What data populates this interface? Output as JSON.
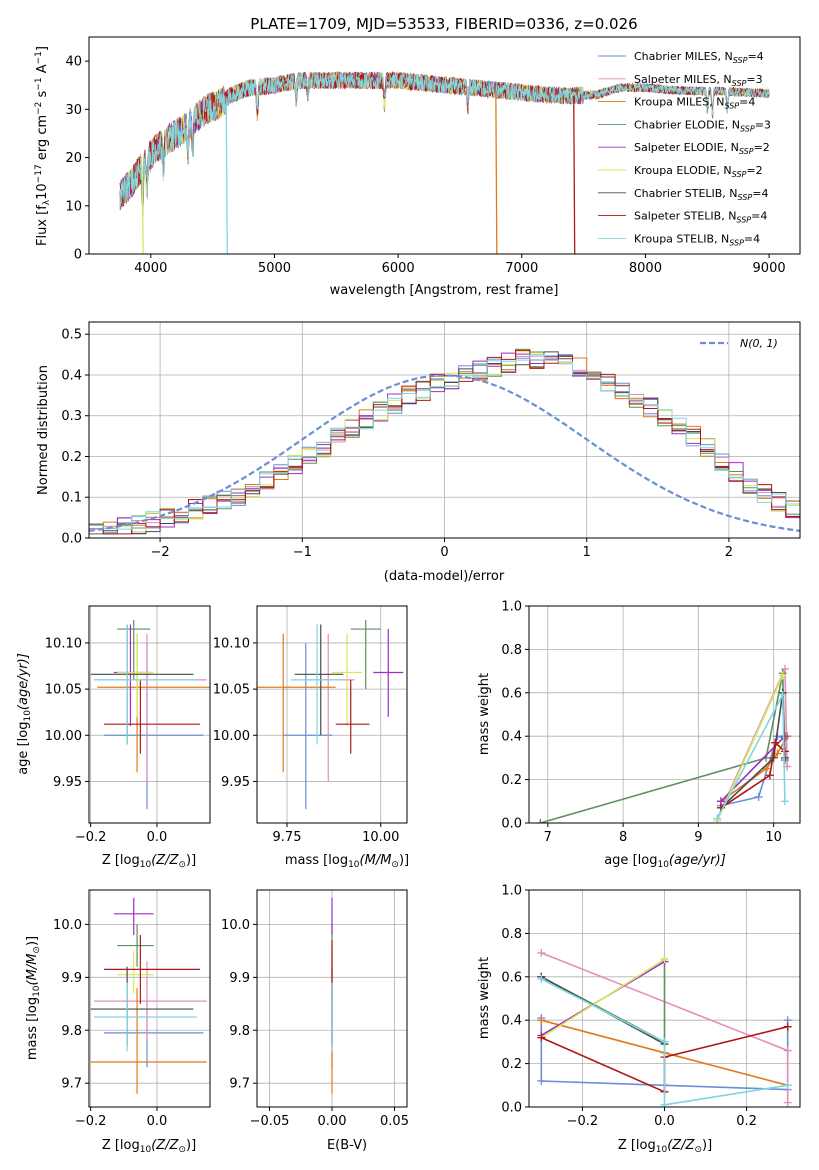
{
  "colors": [
    "#6a8fd6",
    "#e68cba",
    "#e07b1a",
    "#5e8f5e",
    "#9b2ec6",
    "#d9e85a",
    "#4a4a4a",
    "#b01818",
    "#7fd6e0"
  ],
  "chart_data": [
    {
      "type": "line",
      "title": "PLATE=1709, MJD=53533, FIBERID=0336, z=0.026",
      "xlabel": "wavelength [Angstrom, rest frame]",
      "ylabel": "Flux [f",
      "ylabel_sub": "λ",
      "ylabel_mid": "10",
      "ylabel_exp1": "−17",
      "ylabel_mid2": " erg cm",
      "ylabel_exp2": "−2",
      "ylabel_mid3": " s",
      "ylabel_exp3": "−1",
      "ylabel_mid4": " A",
      "ylabel_exp4": "−1",
      "ylabel_end": "]",
      "xlim": [
        3500,
        9250
      ],
      "ylim": [
        0,
        45
      ],
      "xticks": [
        "4000",
        "5000",
        "6000",
        "7000",
        "8000",
        "9000"
      ],
      "xtick_vals": [
        4000,
        5000,
        6000,
        7000,
        8000,
        9000
      ],
      "yticks": [
        "0",
        "10",
        "20",
        "30",
        "40"
      ],
      "ytick_vals": [
        0,
        10,
        20,
        30,
        40
      ],
      "legend": [
        {
          "name": "Chabrier MILES, N",
          "sub": "SSP",
          "n": "=4"
        },
        {
          "name": "Salpeter MILES, N",
          "sub": "SSP",
          "n": "=3"
        },
        {
          "name": "Kroupa MILES, N",
          "sub": "SSP",
          "n": "=4"
        },
        {
          "name": "Chabrier ELODIE, N",
          "sub": "SSP",
          "n": "=3"
        },
        {
          "name": "Salpeter ELODIE, N",
          "sub": "SSP",
          "n": "=2"
        },
        {
          "name": "Kroupa ELODIE, N",
          "sub": "SSP",
          "n": "=2"
        },
        {
          "name": "Chabrier STELIB, N",
          "sub": "SSP",
          "n": "=4"
        },
        {
          "name": "Salpeter STELIB, N",
          "sub": "SSP",
          "n": "=4"
        },
        {
          "name": "Kroupa STELIB, N",
          "sub": "SSP",
          "n": "=4"
        }
      ],
      "continuum": [
        [
          3750,
          12
        ],
        [
          3850,
          15
        ],
        [
          3950,
          19
        ],
        [
          4050,
          22
        ],
        [
          4150,
          24
        ],
        [
          4250,
          25.5
        ],
        [
          4350,
          28
        ],
        [
          4450,
          30
        ],
        [
          4550,
          31
        ],
        [
          4650,
          33
        ],
        [
          4800,
          34.5
        ],
        [
          5000,
          35
        ],
        [
          5200,
          36
        ],
        [
          5400,
          36
        ],
        [
          5600,
          36
        ],
        [
          5800,
          36
        ],
        [
          6000,
          36
        ],
        [
          6200,
          35.5
        ],
        [
          6400,
          35
        ],
        [
          6600,
          34.5
        ],
        [
          6800,
          34
        ],
        [
          7000,
          33.5
        ],
        [
          7200,
          33
        ],
        [
          7400,
          32.8
        ],
        [
          7600,
          33
        ],
        [
          7800,
          34.5
        ],
        [
          8000,
          34.5
        ],
        [
          8200,
          34
        ],
        [
          8400,
          33.8
        ],
        [
          8600,
          33.8
        ],
        [
          8800,
          33.5
        ],
        [
          9000,
          33.3
        ]
      ],
      "dropouts": [
        [
          3930,
          0
        ],
        [
          4610,
          0
        ],
        [
          6790,
          0
        ],
        [
          7420,
          0
        ]
      ]
    },
    {
      "type": "histogram",
      "xlabel": "(data-model)/error",
      "ylabel": "Normed distribution",
      "xlim": [
        -2.5,
        2.5
      ],
      "ylim": [
        0,
        0.53
      ],
      "xticks": [
        "−2",
        "−1",
        "0",
        "1",
        "2"
      ],
      "xtick_vals": [
        -2,
        -1,
        0,
        1,
        2
      ],
      "yticks": [
        "0.0",
        "0.1",
        "0.2",
        "0.3",
        "0.4",
        "0.5"
      ],
      "ytick_vals": [
        0,
        0.1,
        0.2,
        0.3,
        0.4,
        0.5
      ],
      "legend": "N(0, 1)",
      "bin_width": 0.1,
      "base_profile": [
        0.02,
        0.025,
        0.03,
        0.035,
        0.04,
        0.05,
        0.06,
        0.07,
        0.08,
        0.09,
        0.1,
        0.12,
        0.14,
        0.16,
        0.18,
        0.2,
        0.22,
        0.25,
        0.27,
        0.29,
        0.31,
        0.33,
        0.35,
        0.36,
        0.38,
        0.39,
        0.4,
        0.41,
        0.42,
        0.43,
        0.44,
        0.44,
        0.44,
        0.43,
        0.42,
        0.4,
        0.38,
        0.36,
        0.34,
        0.32,
        0.3,
        0.28,
        0.25,
        0.22,
        0.19,
        0.16,
        0.13,
        0.11,
        0.09,
        0.07
      ]
    },
    {
      "type": "scatter",
      "xlabel": "Z [log",
      "xlabel_sub": "10",
      "xlabel_end": "(Z/Z",
      "xlabel_sun": "⊙",
      "xlabel_close": ")]",
      "ylabel": "age  [log",
      "ylabel_sub": "10",
      "ylabel_end": "(age/yr)]",
      "xlim": [
        -0.205,
        0.16
      ],
      "ylim": [
        9.905,
        10.14
      ],
      "xticks": [
        "−0.2",
        "0.0"
      ],
      "xtick_vals": [
        -0.2,
        0.0
      ],
      "yticks": [
        "9.95",
        "10.00",
        "10.05",
        "10.10"
      ],
      "ytick_vals": [
        9.95,
        10.0,
        10.05,
        10.1
      ],
      "points": [
        {
          "x": -0.03,
          "y": 10.0,
          "xe": [
            -0.16,
            0.14
          ],
          "ye": [
            9.92,
            10.1
          ]
        },
        {
          "x": -0.03,
          "y": 10.06,
          "xe": [
            -0.19,
            0.15
          ],
          "ye": [
            9.95,
            10.11
          ]
        },
        {
          "x": -0.06,
          "y": 10.052,
          "xe": [
            -0.18,
            0.16
          ],
          "ye": [
            9.96,
            10.11
          ]
        },
        {
          "x": -0.07,
          "y": 10.115,
          "xe": [
            -0.12,
            -0.02
          ],
          "ye": [
            10.06,
            10.125
          ]
        },
        {
          "x": -0.08,
          "y": 10.068,
          "xe": [
            -0.13,
            -0.02
          ],
          "ye": [
            10.01,
            10.12
          ]
        },
        {
          "x": -0.06,
          "y": 10.068,
          "xe": [
            -0.12,
            -0.01
          ],
          "ye": [
            10.02,
            10.11
          ]
        },
        {
          "x": -0.09,
          "y": 10.066,
          "xe": [
            -0.2,
            0.11
          ],
          "ye": [
            9.99,
            10.12
          ]
        },
        {
          "x": -0.05,
          "y": 10.012,
          "xe": [
            -0.16,
            0.13
          ],
          "ye": [
            9.98,
            10.06
          ]
        },
        {
          "x": -0.09,
          "y": 10.06,
          "xe": [
            -0.19,
            0.12
          ],
          "ye": [
            9.99,
            10.12
          ]
        }
      ]
    },
    {
      "type": "scatter",
      "xlabel": "mass [log",
      "xlabel_sub": "10",
      "xlabel_end": "(M/M",
      "xlabel_sun": "⊙",
      "xlabel_close": ")]",
      "xlim": [
        9.67,
        10.07
      ],
      "ylim": [
        9.905,
        10.14
      ],
      "xticks": [
        "9.75",
        "10.00"
      ],
      "xtick_vals": [
        9.75,
        10.0
      ],
      "yticks": [
        "9.95",
        "10.00",
        "10.05",
        "10.10"
      ],
      "ytick_vals": [
        9.95,
        10.0,
        10.05,
        10.1
      ],
      "points": [
        {
          "x": 9.8,
          "y": 10.0,
          "xe": [
            9.74,
            9.87
          ],
          "ye": [
            9.92,
            10.1
          ]
        },
        {
          "x": 9.86,
          "y": 10.06,
          "xe": [
            9.79,
            9.93
          ],
          "ye": [
            9.95,
            10.11
          ]
        },
        {
          "x": 9.74,
          "y": 10.052,
          "xe": [
            9.6,
            9.88
          ],
          "ye": [
            9.96,
            10.11
          ]
        },
        {
          "x": 9.96,
          "y": 10.115,
          "xe": [
            9.92,
            10.0
          ],
          "ye": [
            10.05,
            10.125
          ]
        },
        {
          "x": 10.02,
          "y": 10.068,
          "xe": [
            9.98,
            10.06
          ],
          "ye": [
            10.02,
            10.115
          ]
        },
        {
          "x": 9.91,
          "y": 10.068,
          "xe": [
            9.87,
            9.95
          ],
          "ye": [
            10.01,
            10.11
          ]
        },
        {
          "x": 9.84,
          "y": 10.066,
          "xe": [
            9.77,
            9.9
          ],
          "ye": [
            10.0,
            10.12
          ]
        },
        {
          "x": 9.92,
          "y": 10.012,
          "xe": [
            9.88,
            9.97
          ],
          "ye": [
            9.98,
            10.06
          ]
        },
        {
          "x": 9.83,
          "y": 10.06,
          "xe": [
            9.76,
            9.9
          ],
          "ye": [
            9.99,
            10.12
          ]
        }
      ]
    },
    {
      "type": "line",
      "xlabel": "age  [log",
      "xlabel_sub": "10",
      "xlabel_end": "(age/yr)]",
      "ylabel": "mass weight",
      "xlim": [
        6.75,
        10.35
      ],
      "ylim": [
        0,
        1
      ],
      "xticks": [
        "7",
        "8",
        "9",
        "10"
      ],
      "xtick_vals": [
        7,
        8,
        9,
        10
      ],
      "yticks": [
        "0.0",
        "0.2",
        "0.4",
        "0.6",
        "0.8",
        "1.0"
      ],
      "ytick_vals": [
        0,
        0.2,
        0.4,
        0.6,
        0.8,
        1.0
      ],
      "series": [
        {
          "x": [
            9.3,
            9.8,
            10.05,
            10.15
          ],
          "y": [
            0.08,
            0.12,
            0.4,
            0.39
          ]
        },
        {
          "x": [
            9.25,
            10.15,
            10.18
          ],
          "y": [
            0.02,
            0.71,
            0.26
          ]
        },
        {
          "x": [
            9.3,
            9.9,
            10.05,
            10.18
          ],
          "y": [
            0.1,
            0.25,
            0.32,
            0.4
          ]
        },
        {
          "x": [
            6.9,
            9.9,
            10.12,
            10.15
          ],
          "y": [
            0.0,
            0.3,
            0.69,
            0.29
          ]
        },
        {
          "x": [
            9.3,
            10.15
          ],
          "y": [
            0.1,
            0.4
          ]
        },
        {
          "x": [
            9.25,
            10.12
          ],
          "y": [
            0.01,
            0.68
          ]
        },
        {
          "x": [
            9.3,
            10.0,
            10.12,
            10.15
          ],
          "y": [
            0.07,
            0.3,
            0.6,
            0.3
          ]
        },
        {
          "x": [
            9.3,
            9.95,
            10.02,
            10.15
          ],
          "y": [
            0.07,
            0.22,
            0.37,
            0.33
          ]
        },
        {
          "x": [
            9.25,
            10.12,
            10.15
          ],
          "y": [
            0.02,
            0.59,
            0.1
          ]
        }
      ]
    },
    {
      "type": "scatter",
      "xlabel": "Z [log",
      "xlabel_sub": "10",
      "xlabel_end": "(Z/Z",
      "xlabel_sun": "⊙",
      "xlabel_close": ")]",
      "ylabel": "mass [log",
      "ylabel_sub": "10",
      "ylabel_end": "(M/M",
      "ylabel_sun": "⊙",
      "ylabel_close": ")]",
      "xlim": [
        -0.205,
        0.16
      ],
      "ylim": [
        9.655,
        10.065
      ],
      "xticks": [
        "−0.2",
        "0.0"
      ],
      "xtick_vals": [
        -0.2,
        0.0
      ],
      "yticks": [
        "9.7",
        "9.8",
        "9.9",
        "10.0"
      ],
      "ytick_vals": [
        9.7,
        9.8,
        9.9,
        10.0
      ],
      "points": [
        {
          "x": -0.03,
          "y": 9.795,
          "xe": [
            -0.16,
            0.14
          ],
          "ye": [
            9.73,
            9.86
          ]
        },
        {
          "x": -0.03,
          "y": 9.855,
          "xe": [
            -0.19,
            0.15
          ],
          "ye": [
            9.78,
            9.93
          ]
        },
        {
          "x": -0.06,
          "y": 9.74,
          "xe": [
            -0.2,
            0.15
          ],
          "ye": [
            9.68,
            9.88
          ]
        },
        {
          "x": -0.06,
          "y": 9.96,
          "xe": [
            -0.12,
            -0.01
          ],
          "ye": [
            9.92,
            10.0
          ]
        },
        {
          "x": -0.07,
          "y": 10.02,
          "xe": [
            -0.13,
            -0.01
          ],
          "ye": [
            9.98,
            10.05
          ]
        },
        {
          "x": -0.07,
          "y": 9.905,
          "xe": [
            -0.12,
            -0.01
          ],
          "ye": [
            9.87,
            9.95
          ]
        },
        {
          "x": -0.09,
          "y": 9.84,
          "xe": [
            -0.2,
            0.11
          ],
          "ye": [
            9.77,
            9.92
          ]
        },
        {
          "x": -0.05,
          "y": 9.915,
          "xe": [
            -0.16,
            0.13
          ],
          "ye": [
            9.85,
            9.98
          ]
        },
        {
          "x": -0.09,
          "y": 9.825,
          "xe": [
            -0.19,
            0.12
          ],
          "ye": [
            9.76,
            9.89
          ]
        }
      ]
    },
    {
      "type": "scatter",
      "xlabel": "E(B-V)",
      "xlim": [
        -0.06,
        0.06
      ],
      "ylim": [
        9.655,
        10.065
      ],
      "xticks": [
        "−0.05",
        "0.00",
        "0.05"
      ],
      "xtick_vals": [
        -0.05,
        0.0,
        0.05
      ],
      "yticks": [
        "9.7",
        "9.8",
        "9.9",
        "10.0"
      ],
      "ytick_vals": [
        9.7,
        9.8,
        9.9,
        10.0
      ],
      "points": [
        {
          "x": 0,
          "y": 9.8,
          "ye": [
            9.73,
            9.87
          ]
        },
        {
          "x": 0,
          "y": 9.86,
          "ye": [
            9.78,
            9.93
          ]
        },
        {
          "x": 0,
          "y": 9.74,
          "ye": [
            9.68,
            9.88
          ]
        },
        {
          "x": 0,
          "y": 9.96,
          "ye": [
            9.92,
            10.0
          ]
        },
        {
          "x": 0,
          "y": 10.02,
          "ye": [
            9.98,
            10.05
          ]
        },
        {
          "x": 0,
          "y": 9.9,
          "ye": [
            9.87,
            9.95
          ]
        },
        {
          "x": 0,
          "y": 9.84,
          "ye": [
            9.77,
            9.92
          ]
        },
        {
          "x": 0,
          "y": 9.915,
          "ye": [
            9.86,
            9.97
          ]
        },
        {
          "x": 0,
          "y": 9.82,
          "ye": [
            9.76,
            9.89
          ]
        }
      ]
    },
    {
      "type": "line",
      "xlabel": "Z [log",
      "xlabel_sub": "10",
      "xlabel_end": "(Z/Z",
      "xlabel_sun": "⊙",
      "xlabel_close": ")]",
      "ylabel": "mass weight",
      "xlim": [
        -0.33,
        0.33
      ],
      "ylim": [
        0,
        1
      ],
      "xticks": [
        "−0.2",
        "0.0",
        "0.2"
      ],
      "xtick_vals": [
        -0.2,
        0.0,
        0.2
      ],
      "yticks": [
        "0.0",
        "0.2",
        "0.4",
        "0.6",
        "0.8",
        "1.0"
      ],
      "ytick_vals": [
        0,
        0.2,
        0.4,
        0.6,
        0.8,
        1.0
      ],
      "series": [
        {
          "x": [
            -0.3,
            -0.3,
            0.0,
            0.3,
            0.3
          ],
          "y": [
            0.41,
            0.12,
            0.1,
            0.08,
            0.4
          ]
        },
        {
          "x": [
            -0.3,
            0.3,
            0.3
          ],
          "y": [
            0.71,
            0.26,
            0.02
          ]
        },
        {
          "x": [
            -0.3,
            0.0,
            0.3
          ],
          "y": [
            0.4,
            0.25,
            0.1
          ]
        },
        {
          "x": [
            -0.3,
            0.0,
            0.0
          ],
          "y": [
            0.6,
            0.3,
            0.68
          ]
        },
        {
          "x": [
            -0.3,
            0.0
          ],
          "y": [
            0.33,
            0.67
          ]
        },
        {
          "x": [
            -0.3,
            0.0
          ],
          "y": [
            0.32,
            0.68
          ]
        },
        {
          "x": [
            -0.3,
            0.0
          ],
          "y": [
            0.6,
            0.29
          ]
        },
        {
          "x": [
            -0.3,
            0.0,
            0.0,
            0.3
          ],
          "y": [
            0.32,
            0.07,
            0.23,
            0.37
          ]
        },
        {
          "x": [
            -0.3,
            0.0,
            0.0,
            0.3
          ],
          "y": [
            0.59,
            0.3,
            0.01,
            0.1
          ]
        }
      ]
    }
  ]
}
